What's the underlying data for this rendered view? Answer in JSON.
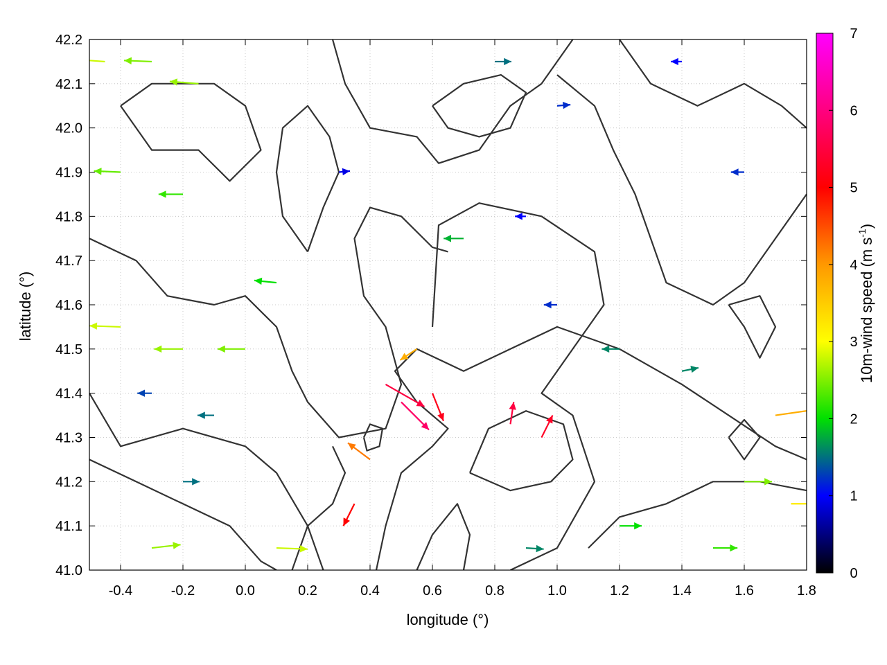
{
  "chart_data": {
    "type": "vector-field",
    "xlabel": "longitude (°)",
    "ylabel": "latitude (°)",
    "colorbar_label": {
      "main": "10m-wind speed (m s",
      "sup": "-1",
      "close": ")"
    },
    "xlim": [
      -0.5,
      1.8
    ],
    "ylim": [
      41.0,
      42.2
    ],
    "xticks": [
      -0.4,
      -0.2,
      0.0,
      0.2,
      0.4,
      0.6,
      0.8,
      1.0,
      1.2,
      1.4,
      1.6,
      1.8
    ],
    "xtick_labels": [
      "-0.4",
      "-0.2",
      "0.0",
      "0.2",
      "0.4",
      "0.6",
      "0.8",
      "1.0",
      "1.2",
      "1.4",
      "1.6",
      "1.8"
    ],
    "yticks": [
      41.0,
      41.1,
      41.2,
      41.3,
      41.4,
      41.5,
      41.6,
      41.7,
      41.8,
      41.9,
      42.0,
      42.1,
      42.2
    ],
    "ytick_labels": [
      "41.0",
      "41.1",
      "41.2",
      "41.3",
      "41.4",
      "41.5",
      "41.6",
      "41.7",
      "41.8",
      "41.9",
      "42.0",
      "42.1",
      "42.2"
    ],
    "colorbar_range": [
      0,
      7
    ],
    "colorbar_ticks": [
      "0",
      "1",
      "2",
      "3",
      "4",
      "5",
      "6",
      "7"
    ],
    "colormap": [
      "#000000",
      "#0000ff",
      "#00e000",
      "#ffff00",
      "#ff9900",
      "#ff0000",
      "#ff00ff"
    ],
    "grid": true,
    "contour_color": "#333333",
    "vectors": [
      {
        "lon": -0.45,
        "lat": 42.15,
        "u": -2.8,
        "v": 0.2,
        "speed": 2.8
      },
      {
        "lon": -0.3,
        "lat": 42.15,
        "u": -2.5,
        "v": 0.1,
        "speed": 2.5
      },
      {
        "lon": -0.15,
        "lat": 42.1,
        "u": -2.6,
        "v": 0.2,
        "speed": 2.6
      },
      {
        "lon": -0.4,
        "lat": 41.9,
        "u": -2.4,
        "v": 0.1,
        "speed": 2.4
      },
      {
        "lon": -0.2,
        "lat": 41.85,
        "u": -2.2,
        "v": 0.0,
        "speed": 2.2
      },
      {
        "lon": -0.4,
        "lat": 41.55,
        "u": -2.8,
        "v": 0.1,
        "speed": 2.8
      },
      {
        "lon": -0.2,
        "lat": 41.5,
        "u": -2.6,
        "v": 0.0,
        "speed": 2.6
      },
      {
        "lon": 0.0,
        "lat": 41.5,
        "u": -2.5,
        "v": 0.0,
        "speed": 2.5
      },
      {
        "lon": -0.3,
        "lat": 41.4,
        "u": -1.3,
        "v": 0.0,
        "speed": 1.3
      },
      {
        "lon": -0.1,
        "lat": 41.35,
        "u": -1.5,
        "v": 0.0,
        "speed": 1.5
      },
      {
        "lon": 0.45,
        "lat": 41.42,
        "u": 3.5,
        "v": -2.0,
        "speed": 5.5
      },
      {
        "lon": 0.5,
        "lat": 41.38,
        "u": 2.5,
        "v": -2.5,
        "speed": 5.8
      },
      {
        "lon": 0.6,
        "lat": 41.4,
        "u": 1.0,
        "v": -2.5,
        "speed": 5.2
      },
      {
        "lon": 0.55,
        "lat": 41.5,
        "u": -1.5,
        "v": -1.0,
        "speed": 3.8
      },
      {
        "lon": 0.4,
        "lat": 41.25,
        "u": -2.0,
        "v": 1.5,
        "speed": 4.2
      },
      {
        "lon": 0.35,
        "lat": 41.15,
        "u": -1.0,
        "v": -2.0,
        "speed": 5.0
      },
      {
        "lon": 0.85,
        "lat": 41.33,
        "u": 0.3,
        "v": 2.0,
        "speed": 5.5
      },
      {
        "lon": 0.95,
        "lat": 41.3,
        "u": 1.0,
        "v": 2.0,
        "speed": 5.3
      },
      {
        "lon": 0.7,
        "lat": 41.75,
        "u": -1.8,
        "v": 0.0,
        "speed": 1.8
      },
      {
        "lon": 0.9,
        "lat": 41.8,
        "u": -1.0,
        "v": 0.0,
        "speed": 1.0
      },
      {
        "lon": 1.0,
        "lat": 41.6,
        "u": -1.2,
        "v": 0.0,
        "speed": 1.2
      },
      {
        "lon": 1.2,
        "lat": 41.5,
        "u": -1.6,
        "v": 0.0,
        "speed": 1.6
      },
      {
        "lon": 1.4,
        "lat": 41.45,
        "u": 1.5,
        "v": 0.3,
        "speed": 1.6
      },
      {
        "lon": 1.6,
        "lat": 41.2,
        "u": 2.5,
        "v": 0.0,
        "speed": 2.5
      },
      {
        "lon": 1.75,
        "lat": 41.15,
        "u": 3.0,
        "v": 0.0,
        "speed": 3.2
      },
      {
        "lon": 1.7,
        "lat": 41.35,
        "u": 3.5,
        "v": 0.5,
        "speed": 3.8
      },
      {
        "lon": 1.5,
        "lat": 41.05,
        "u": 2.2,
        "v": 0.0,
        "speed": 2.2
      },
      {
        "lon": 1.2,
        "lat": 41.1,
        "u": 2.0,
        "v": 0.0,
        "speed": 2.0
      },
      {
        "lon": 0.9,
        "lat": 41.05,
        "u": 1.6,
        "v": -0.1,
        "speed": 1.6
      },
      {
        "lon": 0.1,
        "lat": 41.05,
        "u": 2.8,
        "v": -0.1,
        "speed": 2.8
      },
      {
        "lon": -0.3,
        "lat": 41.05,
        "u": 2.6,
        "v": 0.3,
        "speed": 2.6
      },
      {
        "lon": -0.2,
        "lat": 41.2,
        "u": 1.5,
        "v": 0.0,
        "speed": 1.5
      },
      {
        "lon": 0.8,
        "lat": 42.15,
        "u": 1.5,
        "v": 0.0,
        "speed": 1.5
      },
      {
        "lon": 1.0,
        "lat": 42.05,
        "u": 1.2,
        "v": 0.1,
        "speed": 1.2
      },
      {
        "lon": 1.4,
        "lat": 42.15,
        "u": -1.0,
        "v": 0.0,
        "speed": 1.0
      },
      {
        "lon": 1.6,
        "lat": 41.9,
        "u": -1.2,
        "v": 0.0,
        "speed": 1.2
      },
      {
        "lon": 0.3,
        "lat": 41.9,
        "u": 1.0,
        "v": 0.1,
        "speed": 0.9
      },
      {
        "lon": 0.1,
        "lat": 41.65,
        "u": -2.0,
        "v": 0.2,
        "speed": 2.0
      }
    ],
    "contours": [
      [
        [
          -0.5,
          41.75
        ],
        [
          -0.35,
          41.7
        ],
        [
          -0.25,
          41.62
        ],
        [
          -0.1,
          41.6
        ],
        [
          0.0,
          41.62
        ],
        [
          0.1,
          41.55
        ],
        [
          0.15,
          41.45
        ],
        [
          0.2,
          41.38
        ],
        [
          0.3,
          41.3
        ],
        [
          0.45,
          41.32
        ],
        [
          0.5,
          41.42
        ],
        [
          0.45,
          41.55
        ],
        [
          0.38,
          41.62
        ],
        [
          0.35,
          41.75
        ],
        [
          0.4,
          41.82
        ],
        [
          0.5,
          41.8
        ],
        [
          0.6,
          41.73
        ],
        [
          0.65,
          41.72
        ]
      ],
      [
        [
          0.6,
          41.55
        ],
        [
          0.62,
          41.78
        ],
        [
          0.75,
          41.83
        ],
        [
          0.95,
          41.8
        ],
        [
          1.12,
          41.72
        ],
        [
          1.15,
          41.6
        ],
        [
          1.05,
          41.5
        ],
        [
          0.95,
          41.4
        ],
        [
          1.05,
          41.35
        ],
        [
          1.12,
          41.2
        ],
        [
          1.0,
          41.05
        ],
        [
          0.85,
          41.0
        ]
      ],
      [
        [
          0.42,
          41.0
        ],
        [
          0.45,
          41.1
        ],
        [
          0.5,
          41.22
        ],
        [
          0.6,
          41.28
        ],
        [
          0.65,
          41.32
        ],
        [
          0.55,
          41.38
        ],
        [
          0.48,
          41.45
        ],
        [
          0.55,
          41.5
        ],
        [
          0.7,
          41.45
        ],
        [
          0.85,
          41.5
        ],
        [
          1.0,
          41.55
        ],
        [
          1.2,
          41.5
        ],
        [
          1.4,
          41.42
        ],
        [
          1.55,
          41.35
        ],
        [
          1.7,
          41.28
        ],
        [
          1.8,
          41.25
        ]
      ],
      [
        [
          0.72,
          41.22
        ],
        [
          0.78,
          41.32
        ],
        [
          0.9,
          41.36
        ],
        [
          1.02,
          41.33
        ],
        [
          1.05,
          41.25
        ],
        [
          0.98,
          41.2
        ],
        [
          0.85,
          41.18
        ],
        [
          0.72,
          41.22
        ]
      ],
      [
        [
          0.38,
          41.3
        ],
        [
          0.4,
          41.33
        ],
        [
          0.44,
          41.32
        ],
        [
          0.43,
          41.28
        ],
        [
          0.39,
          41.27
        ],
        [
          0.38,
          41.3
        ]
      ],
      [
        [
          -0.5,
          41.4
        ],
        [
          -0.4,
          41.28
        ],
        [
          -0.2,
          41.32
        ],
        [
          0.0,
          41.28
        ],
        [
          0.1,
          41.22
        ],
        [
          0.2,
          41.1
        ],
        [
          0.25,
          41.0
        ]
      ],
      [
        [
          -0.5,
          41.25
        ],
        [
          -0.35,
          41.2
        ],
        [
          -0.2,
          41.15
        ],
        [
          -0.05,
          41.1
        ],
        [
          0.05,
          41.02
        ],
        [
          0.1,
          41.0
        ]
      ],
      [
        [
          -0.4,
          42.05
        ],
        [
          -0.3,
          41.95
        ],
        [
          -0.15,
          41.95
        ],
        [
          -0.05,
          41.88
        ],
        [
          0.05,
          41.95
        ],
        [
          0.0,
          42.05
        ],
        [
          -0.1,
          42.1
        ],
        [
          -0.3,
          42.1
        ],
        [
          -0.4,
          42.05
        ]
      ],
      [
        [
          0.28,
          42.2
        ],
        [
          0.32,
          42.1
        ],
        [
          0.4,
          42.0
        ],
        [
          0.55,
          41.98
        ],
        [
          0.62,
          41.92
        ],
        [
          0.75,
          41.95
        ],
        [
          0.85,
          42.05
        ],
        [
          0.95,
          42.1
        ],
        [
          1.05,
          42.2
        ]
      ],
      [
        [
          0.6,
          42.05
        ],
        [
          0.7,
          42.1
        ],
        [
          0.82,
          42.12
        ],
        [
          0.9,
          42.08
        ],
        [
          0.85,
          42.0
        ],
        [
          0.75,
          41.98
        ],
        [
          0.65,
          42.0
        ],
        [
          0.6,
          42.05
        ]
      ],
      [
        [
          1.0,
          42.12
        ],
        [
          1.12,
          42.05
        ],
        [
          1.18,
          41.95
        ],
        [
          1.25,
          41.85
        ],
        [
          1.3,
          41.75
        ],
        [
          1.35,
          41.65
        ],
        [
          1.5,
          41.6
        ],
        [
          1.6,
          41.65
        ],
        [
          1.7,
          41.75
        ],
        [
          1.8,
          41.85
        ]
      ],
      [
        [
          1.2,
          42.2
        ],
        [
          1.3,
          42.1
        ],
        [
          1.45,
          42.05
        ],
        [
          1.6,
          42.1
        ],
        [
          1.72,
          42.05
        ],
        [
          1.8,
          42.0
        ]
      ],
      [
        [
          1.55,
          41.6
        ],
        [
          1.6,
          41.55
        ],
        [
          1.65,
          41.48
        ],
        [
          1.7,
          41.55
        ],
        [
          1.65,
          41.62
        ],
        [
          1.55,
          41.6
        ]
      ],
      [
        [
          1.1,
          41.05
        ],
        [
          1.2,
          41.12
        ],
        [
          1.35,
          41.15
        ],
        [
          1.5,
          41.2
        ],
        [
          1.65,
          41.2
        ],
        [
          1.8,
          41.18
        ]
      ],
      [
        [
          0.15,
          41.0
        ],
        [
          0.2,
          41.1
        ],
        [
          0.28,
          41.15
        ],
        [
          0.32,
          41.22
        ],
        [
          0.28,
          41.28
        ]
      ],
      [
        [
          0.2,
          41.72
        ],
        [
          0.25,
          41.82
        ],
        [
          0.3,
          41.9
        ],
        [
          0.27,
          41.98
        ],
        [
          0.2,
          42.05
        ],
        [
          0.12,
          42.0
        ],
        [
          0.1,
          41.9
        ],
        [
          0.12,
          41.8
        ],
        [
          0.2,
          41.72
        ]
      ],
      [
        [
          0.55,
          41.0
        ],
        [
          0.6,
          41.08
        ],
        [
          0.68,
          41.15
        ],
        [
          0.72,
          41.08
        ],
        [
          0.7,
          41.0
        ]
      ],
      [
        [
          1.55,
          41.3
        ],
        [
          1.6,
          41.25
        ],
        [
          1.65,
          41.3
        ],
        [
          1.6,
          41.34
        ],
        [
          1.55,
          41.3
        ]
      ]
    ]
  }
}
